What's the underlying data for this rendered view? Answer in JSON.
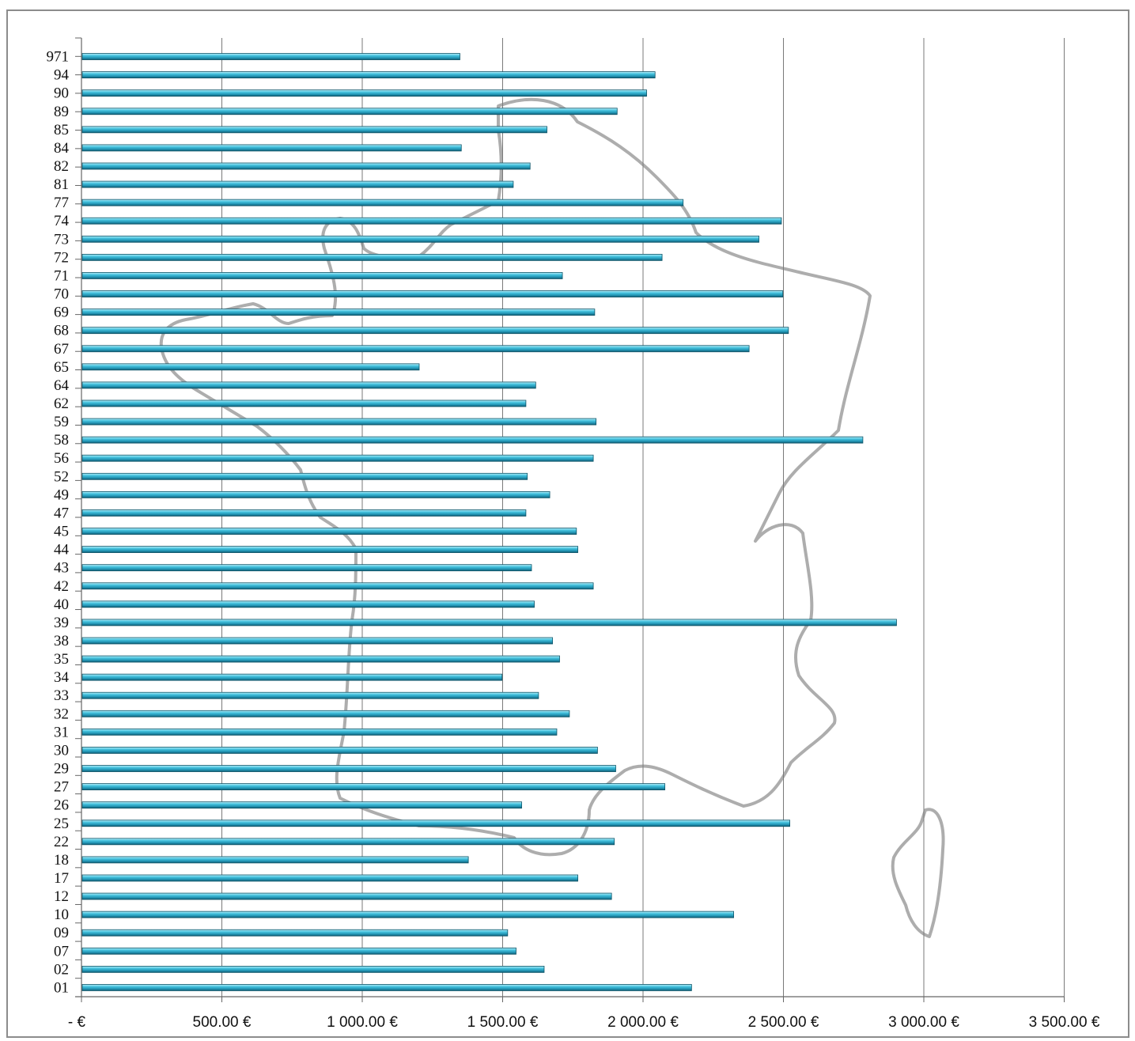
{
  "chart_data": {
    "type": "bar",
    "orientation": "horizontal",
    "categories": [
      "971",
      "94",
      "90",
      "89",
      "85",
      "84",
      "82",
      "81",
      "77",
      "74",
      "73",
      "72",
      "71",
      "70",
      "69",
      "68",
      "67",
      "65",
      "64",
      "62",
      "59",
      "58",
      "56",
      "52",
      "49",
      "47",
      "45",
      "44",
      "43",
      "42",
      "40",
      "39",
      "38",
      "35",
      "34",
      "33",
      "32",
      "31",
      "30",
      "29",
      "27",
      "26",
      "25",
      "22",
      "18",
      "17",
      "12",
      "10",
      "09",
      "07",
      "02",
      "01"
    ],
    "values": [
      1345,
      2040,
      2010,
      1905,
      1655,
      1350,
      1595,
      1535,
      2140,
      2490,
      2410,
      2065,
      1710,
      2495,
      1825,
      2515,
      2375,
      1200,
      1615,
      1580,
      1830,
      2780,
      1820,
      1585,
      1665,
      1580,
      1760,
      1765,
      1600,
      1820,
      1610,
      2900,
      1675,
      1700,
      1495,
      1625,
      1735,
      1690,
      1835,
      1900,
      2075,
      1565,
      2520,
      1895,
      1375,
      1765,
      1885,
      2320,
      1515,
      1545,
      1645,
      2170
    ],
    "x_ticks": [
      "-  €",
      "500.00 €",
      "1 000.00 €",
      "1 500.00 €",
      "2 000.00 €",
      "2 500.00 €",
      "3 000.00 €",
      "3 500.00 €"
    ],
    "xlim": [
      0,
      3500
    ],
    "grid": true,
    "bar_color": "#45c3df",
    "background": "France map silhouette"
  }
}
